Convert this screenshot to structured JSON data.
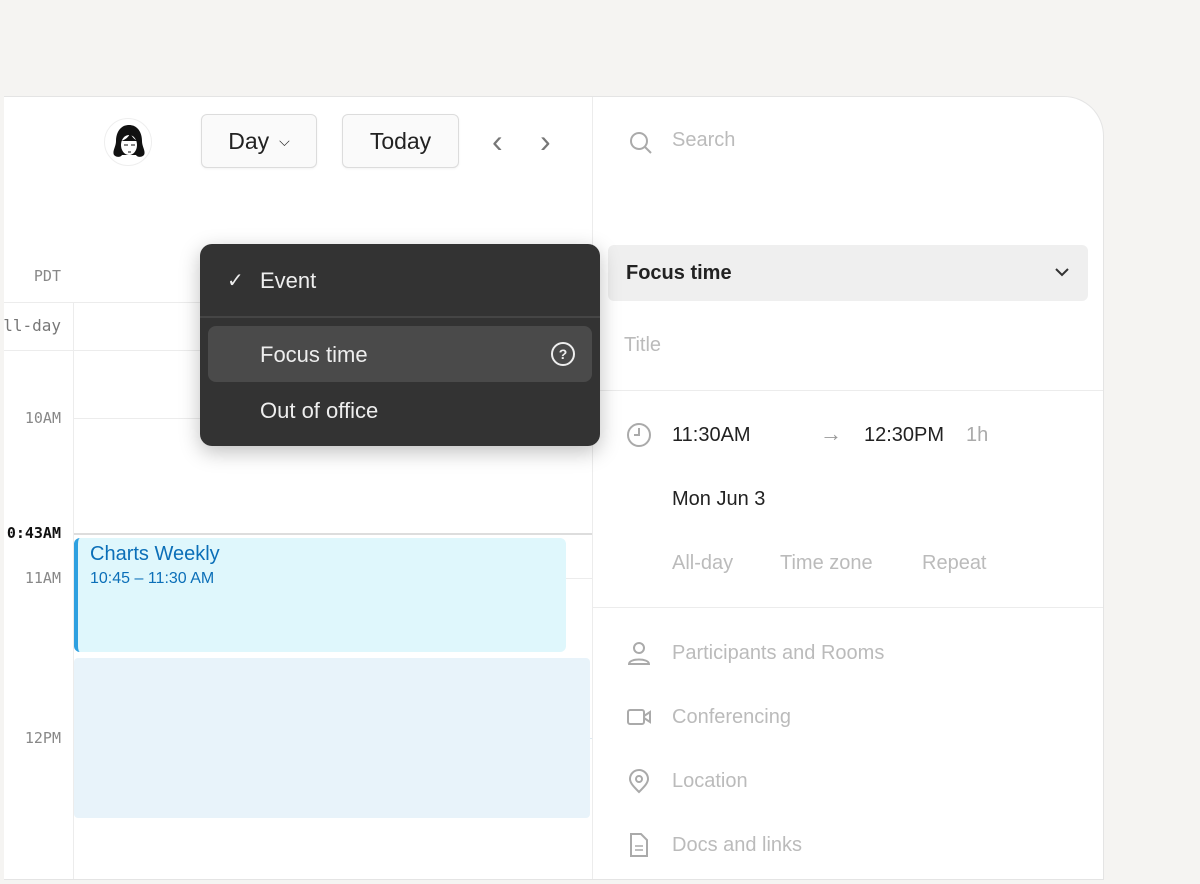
{
  "header": {
    "view_select": "Day",
    "today_label": "Today",
    "prev_label": "‹",
    "next_label": "›"
  },
  "calendar": {
    "timezone": "PDT",
    "all_day_label": "ll-day",
    "hours": [
      "10AM",
      "11AM",
      "12PM"
    ],
    "current_time": "0:43AM",
    "event": {
      "title": "Charts Weekly",
      "time": "10:45 – 11:30 AM",
      "accent": "#2ea0e0",
      "bg": "#dff7fc"
    }
  },
  "menu": {
    "items": [
      {
        "label": "Event",
        "checked": true
      },
      {
        "label": "Focus time",
        "highlighted": true
      },
      {
        "label": "Out of office"
      }
    ]
  },
  "panel": {
    "search_placeholder": "Search",
    "type_select": "Focus time",
    "title_placeholder": "Title",
    "start": "11:30AM",
    "end": "12:30PM",
    "duration": "1h",
    "date": "Mon Jun 3",
    "options": [
      "All-day",
      "Time zone",
      "Repeat"
    ],
    "fields": [
      {
        "label": "Participants and Rooms",
        "icon": "person-icon"
      },
      {
        "label": "Conferencing",
        "icon": "video-icon"
      },
      {
        "label": "Location",
        "icon": "location-pin-icon"
      },
      {
        "label": "Docs and links",
        "icon": "document-icon"
      }
    ]
  }
}
